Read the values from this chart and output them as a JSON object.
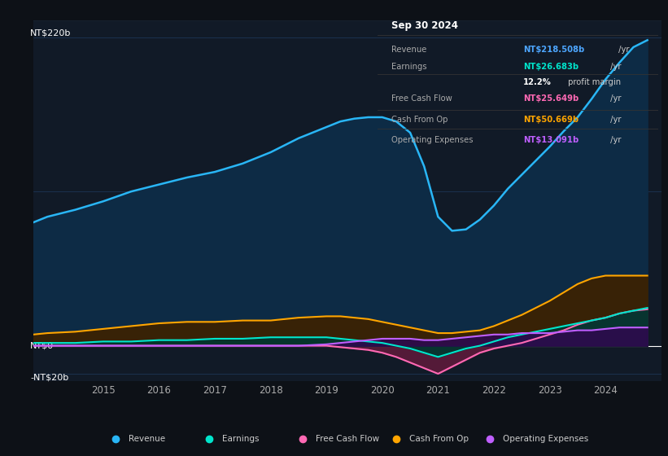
{
  "background_color": "#0d1117",
  "plot_bg_color": "#111a27",
  "grid_color": "#1e3a5f",
  "title_box": {
    "date": "Sep 30 2024",
    "rows": [
      {
        "label": "Revenue",
        "value": "NT$218.508b",
        "suffix": " /yr",
        "value_color": "#4da6ff"
      },
      {
        "label": "Earnings",
        "value": "NT$26.683b",
        "suffix": " /yr",
        "value_color": "#00e5cc"
      },
      {
        "label": "",
        "value": "12.2%",
        "suffix": " profit margin",
        "value_color": "#ffffff"
      },
      {
        "label": "Free Cash Flow",
        "value": "NT$25.649b",
        "suffix": " /yr",
        "value_color": "#ff69b4"
      },
      {
        "label": "Cash From Op",
        "value": "NT$50.669b",
        "suffix": " /yr",
        "value_color": "#ffa500"
      },
      {
        "label": "Operating Expenses",
        "value": "NT$13.091b",
        "suffix": " /yr",
        "value_color": "#bf5fff"
      }
    ]
  },
  "ylim": [
    -25,
    232
  ],
  "series": {
    "revenue": {
      "color_line": "#29b6f6",
      "color_fill": "#0d2b45",
      "label": "Revenue",
      "data_x": [
        2013.75,
        2014.0,
        2014.5,
        2015.0,
        2015.5,
        2016.0,
        2016.5,
        2017.0,
        2017.5,
        2018.0,
        2018.5,
        2019.0,
        2019.25,
        2019.5,
        2019.75,
        2020.0,
        2020.25,
        2020.5,
        2020.75,
        2021.0,
        2021.25,
        2021.5,
        2021.75,
        2022.0,
        2022.25,
        2022.5,
        2022.75,
        2023.0,
        2023.25,
        2023.5,
        2023.75,
        2024.0,
        2024.25,
        2024.5,
        2024.75
      ],
      "data_y": [
        88,
        92,
        97,
        103,
        110,
        115,
        120,
        124,
        130,
        138,
        148,
        156,
        160,
        162,
        163,
        163,
        160,
        152,
        128,
        92,
        82,
        83,
        90,
        100,
        112,
        122,
        132,
        142,
        153,
        163,
        176,
        190,
        202,
        213,
        218
      ]
    },
    "earnings": {
      "color_line": "#00e5cc",
      "color_fill": "#003830",
      "label": "Earnings",
      "data_x": [
        2013.75,
        2014.0,
        2014.5,
        2015.0,
        2015.5,
        2016.0,
        2016.5,
        2017.0,
        2017.5,
        2018.0,
        2018.5,
        2019.0,
        2019.25,
        2019.5,
        2019.75,
        2020.0,
        2020.25,
        2020.5,
        2020.75,
        2021.0,
        2021.25,
        2021.5,
        2021.75,
        2022.0,
        2022.25,
        2022.5,
        2022.75,
        2023.0,
        2023.25,
        2023.5,
        2023.75,
        2024.0,
        2024.25,
        2024.5,
        2024.75
      ],
      "data_y": [
        2,
        2,
        2,
        3,
        3,
        4,
        4,
        5,
        5,
        6,
        6,
        6,
        5,
        4,
        3,
        2,
        0,
        -2,
        -5,
        -8,
        -5,
        -2,
        0,
        3,
        6,
        8,
        10,
        12,
        14,
        16,
        18,
        20,
        23,
        25,
        27
      ]
    },
    "free_cash_flow": {
      "color_line": "#ff69b4",
      "color_fill": "#5c1a3a",
      "label": "Free Cash Flow",
      "data_x": [
        2013.75,
        2014.0,
        2014.5,
        2015.0,
        2015.5,
        2016.0,
        2016.5,
        2017.0,
        2017.5,
        2018.0,
        2018.5,
        2019.0,
        2019.25,
        2019.5,
        2019.75,
        2020.0,
        2020.25,
        2020.5,
        2020.75,
        2021.0,
        2021.25,
        2021.5,
        2021.75,
        2022.0,
        2022.25,
        2022.5,
        2022.75,
        2023.0,
        2023.25,
        2023.5,
        2023.75,
        2024.0,
        2024.25,
        2024.5,
        2024.75
      ],
      "data_y": [
        0,
        0,
        0,
        0,
        0,
        0,
        0,
        0,
        0,
        0,
        0,
        0,
        -1,
        -2,
        -3,
        -5,
        -8,
        -12,
        -16,
        -20,
        -15,
        -10,
        -5,
        -2,
        0,
        2,
        5,
        8,
        11,
        15,
        18,
        20,
        23,
        25,
        26
      ]
    },
    "cash_from_op": {
      "color_line": "#ffa500",
      "color_fill": "#3d2200",
      "label": "Cash From Op",
      "data_x": [
        2013.75,
        2014.0,
        2014.5,
        2015.0,
        2015.5,
        2016.0,
        2016.5,
        2017.0,
        2017.5,
        2018.0,
        2018.5,
        2019.0,
        2019.25,
        2019.5,
        2019.75,
        2020.0,
        2020.25,
        2020.5,
        2020.75,
        2021.0,
        2021.25,
        2021.5,
        2021.75,
        2022.0,
        2022.25,
        2022.5,
        2022.75,
        2023.0,
        2023.25,
        2023.5,
        2023.75,
        2024.0,
        2024.25,
        2024.5,
        2024.75
      ],
      "data_y": [
        8,
        9,
        10,
        12,
        14,
        16,
        17,
        17,
        18,
        18,
        20,
        21,
        21,
        20,
        19,
        17,
        15,
        13,
        11,
        9,
        9,
        10,
        11,
        14,
        18,
        22,
        27,
        32,
        38,
        44,
        48,
        50,
        50,
        50,
        50
      ]
    },
    "operating_expenses": {
      "color_line": "#bf5fff",
      "color_fill": "#2d0a4e",
      "label": "Operating Expenses",
      "data_x": [
        2013.75,
        2014.0,
        2014.5,
        2015.0,
        2015.5,
        2016.0,
        2016.5,
        2017.0,
        2017.5,
        2018.0,
        2018.5,
        2019.0,
        2019.25,
        2019.5,
        2019.75,
        2020.0,
        2020.25,
        2020.5,
        2020.75,
        2021.0,
        2021.25,
        2021.5,
        2021.75,
        2022.0,
        2022.25,
        2022.5,
        2022.75,
        2023.0,
        2023.25,
        2023.5,
        2023.75,
        2024.0,
        2024.25,
        2024.5,
        2024.75
      ],
      "data_y": [
        0,
        0,
        0,
        0,
        0,
        0,
        0,
        0,
        0,
        0,
        0,
        1,
        2,
        3,
        4,
        5,
        5,
        5,
        4,
        4,
        5,
        6,
        7,
        8,
        8,
        9,
        9,
        9,
        10,
        11,
        11,
        12,
        13,
        13,
        13
      ]
    }
  },
  "xticks": [
    2015,
    2016,
    2017,
    2018,
    2019,
    2020,
    2021,
    2022,
    2023,
    2024
  ],
  "legend": [
    {
      "label": "Revenue",
      "color": "#29b6f6"
    },
    {
      "label": "Earnings",
      "color": "#00e5cc"
    },
    {
      "label": "Free Cash Flow",
      "color": "#ff69b4"
    },
    {
      "label": "Cash From Op",
      "color": "#ffa500"
    },
    {
      "label": "Operating Expenses",
      "color": "#bf5fff"
    }
  ]
}
